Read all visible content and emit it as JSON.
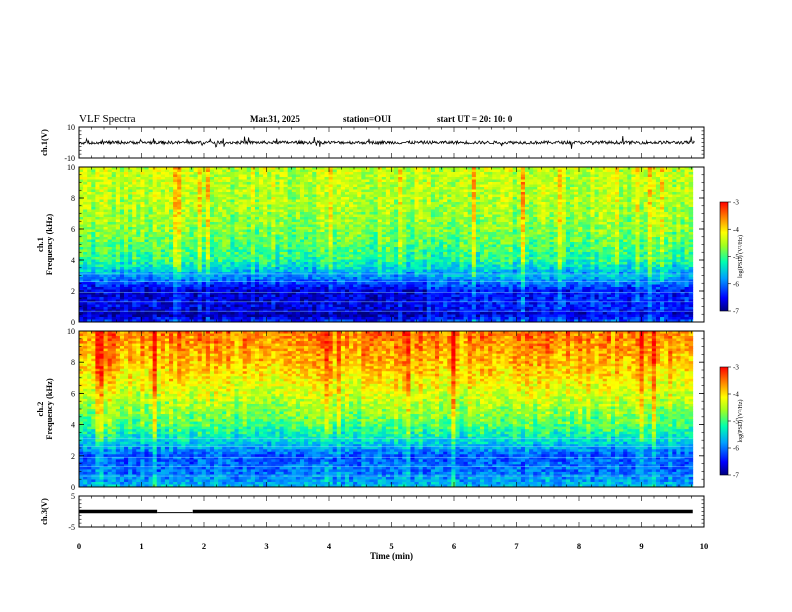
{
  "header": {
    "title": "VLF Spectra",
    "date": "Mar.31, 2025",
    "station": "station=OUI",
    "start": "start UT =  20: 10: 0"
  },
  "panels": {
    "ch1_wave": {
      "ylabel": "ch.1(V)",
      "yticks": [
        "10",
        "-10"
      ]
    },
    "ch1_spec": {
      "ylabel": "ch.1\nFrequency (kHz)",
      "cbar_label": "log(PSD) (V²/Hz)",
      "cbar_ticks": [
        "-3",
        "-4",
        "-5",
        "-6",
        "-7"
      ]
    },
    "ch2_spec": {
      "ylabel": "ch.2\nFrequency (kHz)",
      "cbar_label": "log(PSD) (V²/Hz)",
      "cbar_ticks": [
        "-3",
        "-4",
        "-5",
        "-6",
        "-7"
      ]
    },
    "ch3_wave": {
      "ylabel": "ch.3(V)",
      "yticks": [
        "5",
        "-5"
      ]
    }
  },
  "x_axis": {
    "label": "Time (min)"
  },
  "colors": {
    "low": "#00007f",
    "mid_low": "#0060ff",
    "mid": "#00ffa0",
    "mid_high": "#ffff00",
    "high": "#ff0000"
  },
  "chart_data": [
    {
      "type": "line",
      "name": "ch.1(V)",
      "xlabel": "Time (min)",
      "ylabel": "ch.1(V)",
      "xlim": [
        0,
        10
      ],
      "ylim": [
        -10,
        10
      ],
      "yticks": [
        -10,
        10
      ],
      "baseline": 0,
      "noise_amplitude": 1
    },
    {
      "type": "heatmap",
      "name": "ch.1",
      "xlabel": "Time (min)",
      "ylabel": "Frequency (kHz)",
      "xlim": [
        0,
        10
      ],
      "ylim": [
        0,
        10
      ],
      "yticks": [
        0,
        2,
        4,
        6,
        8,
        10
      ],
      "data_end_min": 9.82,
      "colorbar": {
        "label": "log(PSD) (V²/Hz)",
        "range": [
          -7,
          -3
        ],
        "ticks": [
          -3,
          -4,
          -5,
          -6,
          -7
        ]
      },
      "profile_kHz_to_logPSD": [
        {
          "f": 0,
          "v": -6.3
        },
        {
          "f": 0.5,
          "v": -6.9
        },
        {
          "f": 1,
          "v": -6.6
        },
        {
          "f": 2,
          "v": -6.7
        },
        {
          "f": 3,
          "v": -5.8
        },
        {
          "f": 4,
          "v": -5.1
        },
        {
          "f": 6,
          "v": -4.7
        },
        {
          "f": 8,
          "v": -4.5
        },
        {
          "f": 10,
          "v": -4.4
        }
      ]
    },
    {
      "type": "heatmap",
      "name": "ch.2",
      "xlabel": "Time (min)",
      "ylabel": "Frequency (kHz)",
      "xlim": [
        0,
        10
      ],
      "ylim": [
        0,
        10
      ],
      "yticks": [
        0,
        2,
        4,
        6,
        8,
        10
      ],
      "data_end_min": 9.82,
      "colorbar": {
        "label": "log(PSD) (V²/Hz)",
        "range": [
          -7,
          -3
        ],
        "ticks": [
          -3,
          -4,
          -5,
          -6,
          -7
        ]
      },
      "profile_kHz_to_logPSD": [
        {
          "f": 0,
          "v": -5.6
        },
        {
          "f": 1,
          "v": -6.0
        },
        {
          "f": 2,
          "v": -6.1
        },
        {
          "f": 3,
          "v": -5.4
        },
        {
          "f": 4,
          "v": -4.9
        },
        {
          "f": 6,
          "v": -4.3
        },
        {
          "f": 8,
          "v": -3.8
        },
        {
          "f": 10,
          "v": -3.5
        }
      ]
    },
    {
      "type": "line",
      "name": "ch.3(V)",
      "xlabel": "Time (min)",
      "ylabel": "ch.3(V)",
      "xlim": [
        0,
        10
      ],
      "ylim": [
        -5,
        5
      ],
      "yticks": [
        -5,
        5
      ],
      "segments": [
        {
          "x0": 0,
          "x1": 1.25,
          "y": 0
        },
        {
          "x0": 1.25,
          "x1": 1.82,
          "y": -0.35
        },
        {
          "x0": 1.82,
          "x1": 9.82,
          "y": 0
        }
      ]
    }
  ],
  "x_ticks": [
    0,
    1,
    2,
    3,
    4,
    5,
    6,
    7,
    8,
    9,
    10
  ]
}
